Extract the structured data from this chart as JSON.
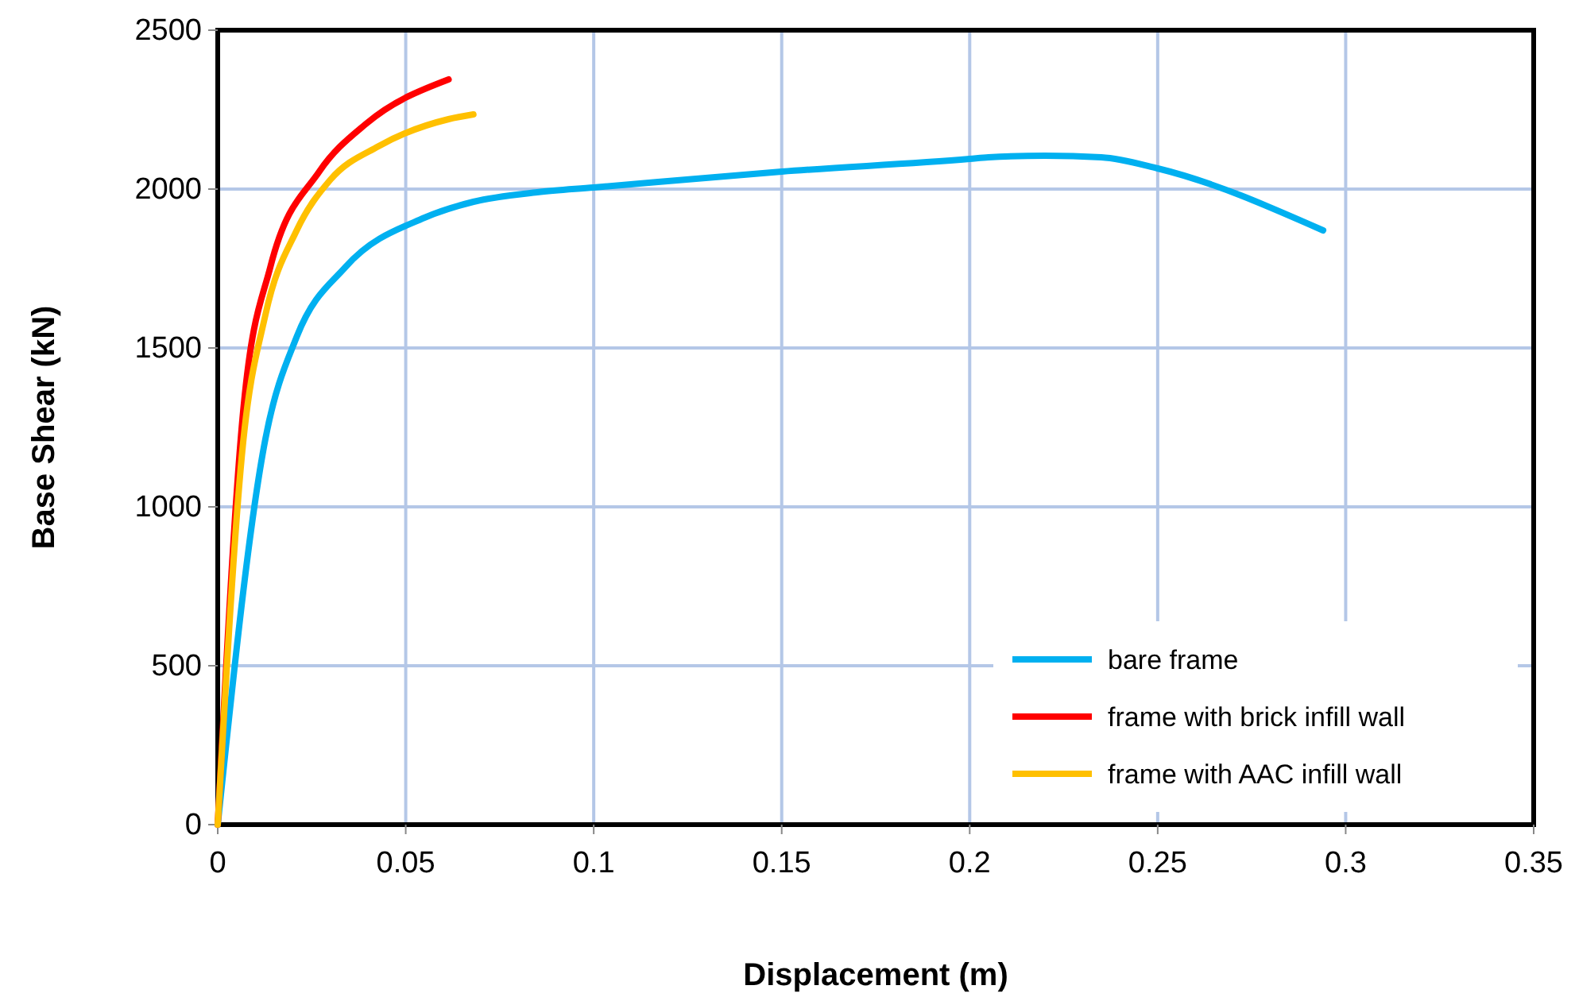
{
  "chart_data": {
    "type": "line",
    "xlabel": "Displacement (m)",
    "ylabel": "Base Shear (kN)",
    "xlim": [
      0,
      0.35
    ],
    "xticks": [
      0,
      0.05,
      0.1,
      0.15,
      0.2,
      0.25,
      0.3,
      0.35
    ],
    "ylim": [
      0,
      2500
    ],
    "yticks": [
      0,
      500,
      1000,
      1500,
      2000,
      2500
    ],
    "grid": true,
    "legend": "bottom right",
    "marker": "none",
    "line_style": "solid",
    "series": [
      {
        "name": "bare frame",
        "color": "#00b0f0",
        "x": [
          0,
          0.0127,
          0.021,
          0.034,
          0.055,
          0.068,
          0.085,
          0.1,
          0.15,
          0.2,
          0.205,
          0.22,
          0.235,
          0.25,
          0.294
        ],
        "values": [
          0,
          1215,
          1535,
          1755,
          1910,
          1960,
          1990,
          2005,
          2055,
          2095,
          2100,
          2105,
          2100,
          2065,
          1870
        ]
      },
      {
        "name": "frame with brick infill wall",
        "color": "#ff0000",
        "x": [
          0,
          0.0068,
          0.014,
          0.027,
          0.0394,
          0.0614
        ],
        "values": [
          0,
          1305,
          1755,
          2055,
          2205,
          2345
        ]
      },
      {
        "name": "frame with AAC infill wall",
        "color": "#ffc000",
        "x": [
          0,
          0.0064,
          0.0127,
          0.021,
          0.03,
          0.0428,
          0.0614,
          0.068
        ],
        "values": [
          0,
          1160,
          1605,
          1870,
          2030,
          2135,
          2220,
          2235
        ]
      }
    ]
  }
}
